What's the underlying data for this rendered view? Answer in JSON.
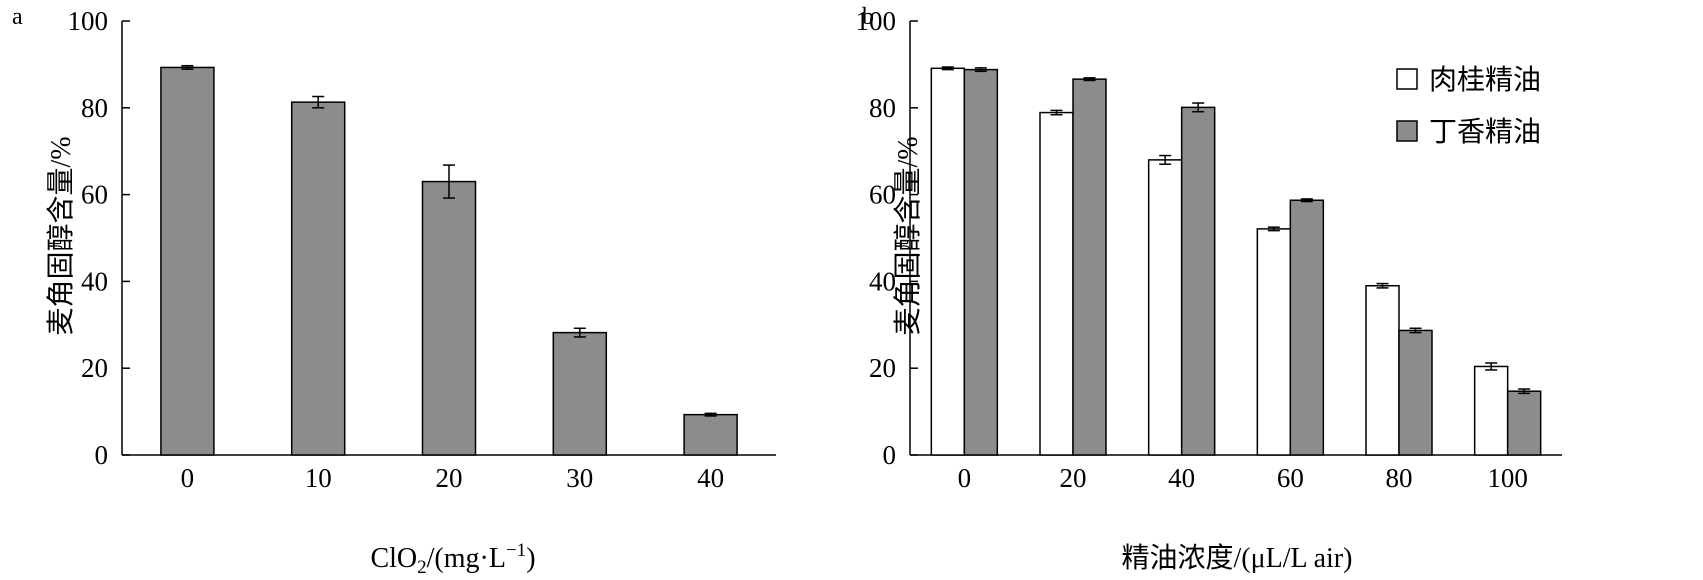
{
  "chart_data": [
    {
      "panel_label": "a",
      "type": "bar",
      "categories": [
        "0",
        "10",
        "20",
        "30",
        "40"
      ],
      "series": [
        {
          "values": [
            89.3,
            81.3,
            63.0,
            28.2,
            9.3
          ],
          "errors": [
            0.4,
            1.3,
            3.8,
            1.0,
            0.3
          ],
          "color": "#8c8c8c"
        }
      ],
      "xlabel": "ClO",
      "xlabel_sub": "2",
      "xlabel_mid": "/(mg·L",
      "xlabel_sup": "−1",
      "xlabel_end": ")",
      "ylabel": "麦角固醇含量/%",
      "ylim": [
        0,
        100
      ],
      "yticks": [
        "0",
        "20",
        "40",
        "60",
        "80",
        "100"
      ],
      "grid": false
    },
    {
      "panel_label": "b",
      "type": "bar",
      "categories": [
        "0",
        "20",
        "40",
        "60",
        "80",
        "100"
      ],
      "series": [
        {
          "name": "肉桂精油",
          "values": [
            89.1,
            78.9,
            68.0,
            52.1,
            39.0,
            20.4
          ],
          "errors": [
            0.3,
            0.5,
            1.0,
            0.4,
            0.5,
            0.8
          ],
          "color": "#ffffff"
        },
        {
          "name": "丁香精油",
          "values": [
            88.8,
            86.6,
            80.1,
            58.7,
            28.7,
            14.7
          ],
          "errors": [
            0.4,
            0.3,
            1.0,
            0.3,
            0.5,
            0.5
          ],
          "color": "#8c8c8c"
        }
      ],
      "xlabel": "精油浓度/(μL/L air)",
      "ylabel": "麦角固醇含量/%",
      "ylim": [
        0,
        100
      ],
      "yticks": [
        "0",
        "20",
        "40",
        "60",
        "80",
        "100"
      ],
      "legend_position": "top-right",
      "grid": false
    }
  ]
}
